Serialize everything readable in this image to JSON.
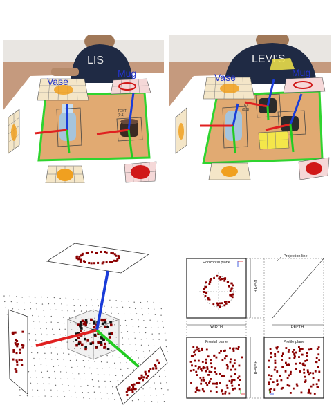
{
  "photo_left": {
    "labels": {
      "vase": "Vase",
      "mug": "Mug"
    },
    "small_text": {
      "line1": "TEXT",
      "line2": "(0.1)"
    }
  },
  "photo_right": {
    "labels": {
      "vase": "Vase",
      "mug": "Mug"
    },
    "shirt_text": "LEVI'S",
    "small_text": {
      "line1": "TEXT",
      "line2": "(0.1)"
    }
  },
  "projection": {
    "projection_line": "Projection line",
    "horizontal_plane": "Horizontal plane",
    "frontal_plane": "Frontal plane",
    "profile_plane": "Profile plane",
    "width": "WIDTH",
    "depth_right": "DEPTH",
    "depth_bottom": "DEPTH",
    "height": "HEIGHT"
  },
  "colors": {
    "axis_red": "#e02020",
    "axis_green": "#22cc22",
    "axis_blue": "#1a3cd8",
    "points_dark_red": "#8b0000",
    "tray_green": "#2fd42f",
    "grid_orange": "#f0a020"
  }
}
